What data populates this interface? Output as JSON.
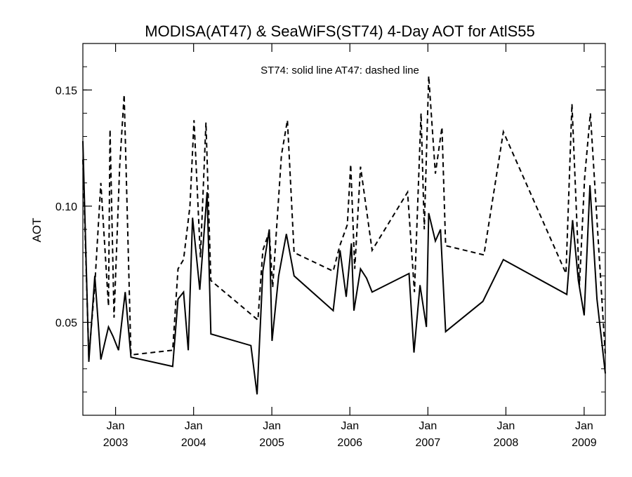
{
  "chart_data": {
    "type": "line",
    "title": "MODISA(AT47) & SeaWiFS(ST74) 4-Day AOT for AtlS55",
    "annotation": "ST74: solid line   AT47: dashed line",
    "xlabel": "",
    "ylabel": "AOT",
    "xlim": [
      "2002-08-01",
      "2009-04-10"
    ],
    "ylim": [
      0.01,
      0.17
    ],
    "y_ticks": [
      0.05,
      0.1,
      0.15
    ],
    "y_tick_labels": [
      "0.05",
      "0.10",
      "0.15"
    ],
    "y_minor_step": 0.01,
    "x_ticks": [
      {
        "date": "2003-01-01",
        "month": "Jan",
        "year": "2003"
      },
      {
        "date": "2004-01-01",
        "month": "Jan",
        "year": "2004"
      },
      {
        "date": "2005-01-01",
        "month": "Jan",
        "year": "2005"
      },
      {
        "date": "2006-01-01",
        "month": "Jan",
        "year": "2006"
      },
      {
        "date": "2007-01-01",
        "month": "Jan",
        "year": "2007"
      },
      {
        "date": "2008-01-01",
        "month": "Jan",
        "year": "2008"
      },
      {
        "date": "2009-01-01",
        "month": "Jan",
        "year": "2009"
      }
    ],
    "grid": false,
    "legend": "none",
    "series": [
      {
        "style": "solid",
        "color": "#000000",
        "points": [
          [
            "2002-08-01",
            0.128
          ],
          [
            "2002-08-29",
            0.033
          ],
          [
            "2002-09-26",
            0.07
          ],
          [
            "2002-10-24",
            0.034
          ],
          [
            "2002-11-29",
            0.048
          ],
          [
            "2002-12-20",
            0.044
          ],
          [
            "2003-01-15",
            0.038
          ],
          [
            "2003-02-15",
            0.063
          ],
          [
            "2003-03-14",
            0.035
          ],
          [
            "2003-09-25",
            0.031
          ],
          [
            "2003-10-20",
            0.06
          ],
          [
            "2003-11-15",
            0.063
          ],
          [
            "2003-12-07",
            0.038
          ],
          [
            "2003-12-27",
            0.095
          ],
          [
            "2004-01-30",
            0.064
          ],
          [
            "2004-03-04",
            0.106
          ],
          [
            "2004-03-22",
            0.045
          ],
          [
            "2004-09-25",
            0.04
          ],
          [
            "2004-10-24",
            0.019
          ],
          [
            "2004-11-20",
            0.072
          ],
          [
            "2004-12-20",
            0.09
          ],
          [
            "2005-01-02",
            0.042
          ],
          [
            "2005-02-02",
            0.07
          ],
          [
            "2005-03-10",
            0.088
          ],
          [
            "2005-04-15",
            0.07
          ],
          [
            "2005-10-15",
            0.055
          ],
          [
            "2005-11-16",
            0.081
          ],
          [
            "2005-12-15",
            0.061
          ],
          [
            "2006-01-08",
            0.084
          ],
          [
            "2006-01-20",
            0.055
          ],
          [
            "2006-02-20",
            0.073
          ],
          [
            "2006-03-20",
            0.069
          ],
          [
            "2006-04-15",
            0.063
          ],
          [
            "2006-10-05",
            0.071
          ],
          [
            "2006-10-28",
            0.037
          ],
          [
            "2006-11-25",
            0.066
          ],
          [
            "2006-12-25",
            0.048
          ],
          [
            "2007-01-05",
            0.097
          ],
          [
            "2007-02-05",
            0.085
          ],
          [
            "2007-03-01",
            0.09
          ],
          [
            "2007-03-25",
            0.046
          ],
          [
            "2007-09-15",
            0.059
          ],
          [
            "2007-12-20",
            0.077
          ],
          [
            "2008-10-12",
            0.062
          ],
          [
            "2008-11-08",
            0.094
          ],
          [
            "2008-12-05",
            0.068
          ],
          [
            "2009-01-01",
            0.053
          ],
          [
            "2009-01-28",
            0.109
          ],
          [
            "2009-03-02",
            0.06
          ],
          [
            "2009-04-10",
            0.028
          ]
        ]
      },
      {
        "style": "dashed",
        "color": "#000000",
        "points": [
          [
            "2002-08-01",
            0.12
          ],
          [
            "2002-08-29",
            0.035
          ],
          [
            "2002-09-26",
            0.066
          ],
          [
            "2002-10-24",
            0.11
          ],
          [
            "2002-11-29",
            0.057
          ],
          [
            "2002-12-06",
            0.133
          ],
          [
            "2002-12-25",
            0.052
          ],
          [
            "2003-01-20",
            0.117
          ],
          [
            "2003-02-10",
            0.148
          ],
          [
            "2003-03-14",
            0.036
          ],
          [
            "2003-09-25",
            0.038
          ],
          [
            "2003-10-20",
            0.073
          ],
          [
            "2003-11-15",
            0.077
          ],
          [
            "2003-12-15",
            0.1
          ],
          [
            "2004-01-03",
            0.137
          ],
          [
            "2004-02-02",
            0.078
          ],
          [
            "2004-02-28",
            0.136
          ],
          [
            "2004-03-22",
            0.068
          ],
          [
            "2004-10-28",
            0.051
          ],
          [
            "2004-11-20",
            0.081
          ],
          [
            "2004-12-20",
            0.089
          ],
          [
            "2005-01-05",
            0.065
          ],
          [
            "2005-02-15",
            0.122
          ],
          [
            "2005-03-15",
            0.137
          ],
          [
            "2005-04-15",
            0.08
          ],
          [
            "2005-10-15",
            0.072
          ],
          [
            "2005-11-15",
            0.083
          ],
          [
            "2005-12-20",
            0.092
          ],
          [
            "2006-01-05",
            0.118
          ],
          [
            "2006-01-24",
            0.073
          ],
          [
            "2006-02-20",
            0.117
          ],
          [
            "2006-04-15",
            0.081
          ],
          [
            "2006-09-28",
            0.106
          ],
          [
            "2006-10-30",
            0.063
          ],
          [
            "2006-11-30",
            0.14
          ],
          [
            "2006-12-15",
            0.09
          ],
          [
            "2007-01-05",
            0.156
          ],
          [
            "2007-02-05",
            0.114
          ],
          [
            "2007-03-08",
            0.134
          ],
          [
            "2007-03-25",
            0.083
          ],
          [
            "2007-09-20",
            0.079
          ],
          [
            "2007-12-20",
            0.132
          ],
          [
            "2008-10-08",
            0.071
          ],
          [
            "2008-11-05",
            0.144
          ],
          [
            "2008-12-10",
            0.066
          ],
          [
            "2009-01-03",
            0.112
          ],
          [
            "2009-01-30",
            0.14
          ],
          [
            "2009-04-10",
            0.036
          ]
        ]
      }
    ]
  }
}
